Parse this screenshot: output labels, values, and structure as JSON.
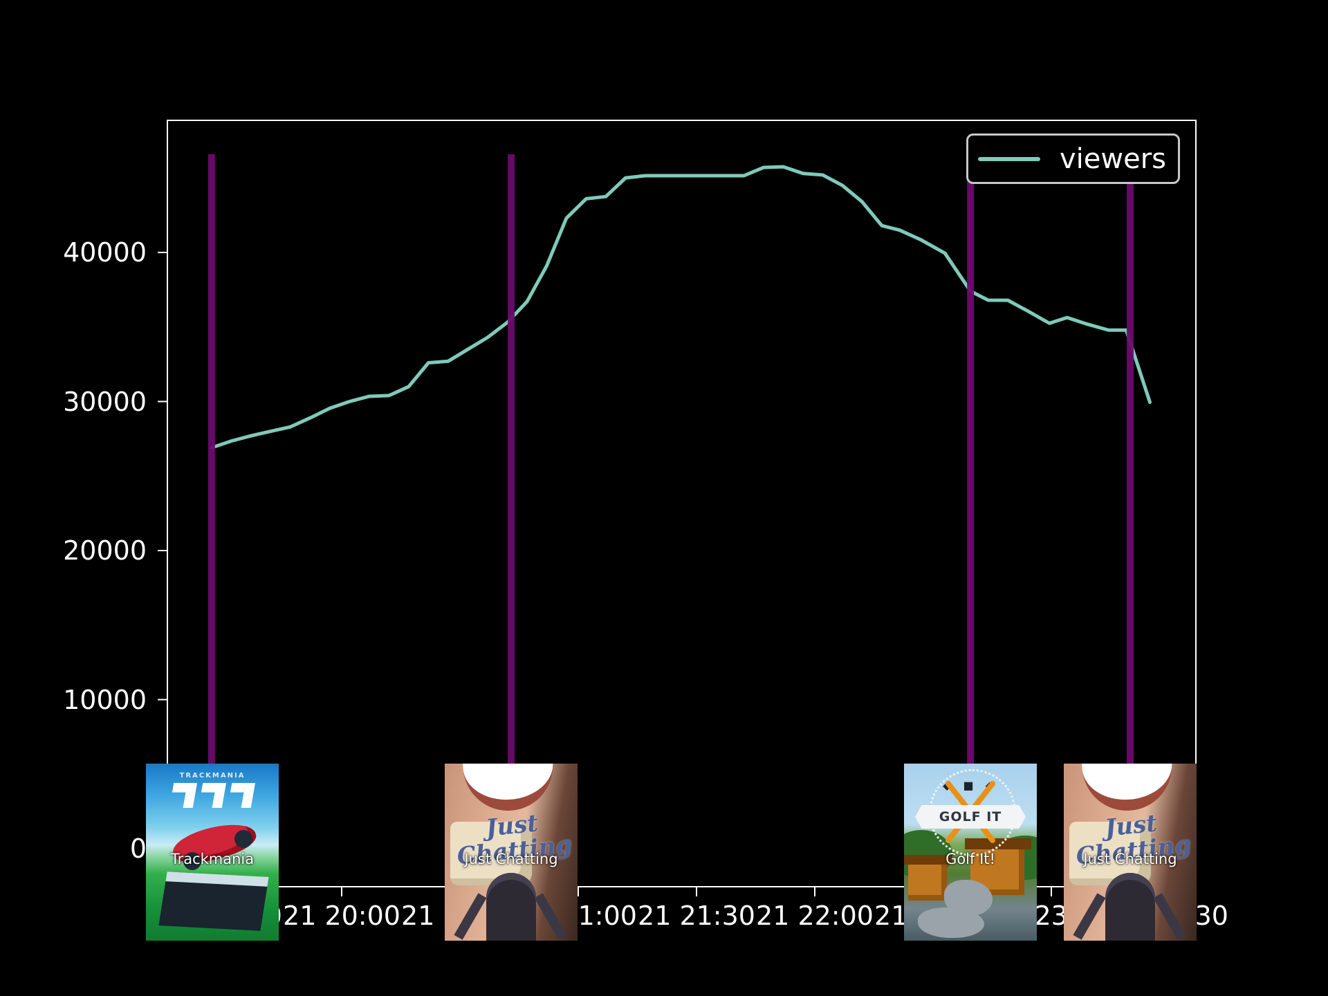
{
  "chart_data": {
    "type": "line",
    "title": "",
    "background": "#000000",
    "grid": false,
    "legend_position": "upper right",
    "legend_entries": [
      "viewers"
    ],
    "xlabel": "",
    "ylabel": "",
    "ylim": [
      -2700,
      49000
    ],
    "y_ticks": [
      {
        "v": 0,
        "label": "0"
      },
      {
        "v": 10000,
        "label": "10000"
      },
      {
        "v": 20000,
        "label": "20000"
      },
      {
        "v": 30000,
        "label": "30000"
      },
      {
        "v": 40000,
        "label": "40000"
      }
    ],
    "x_ticks": [
      {
        "t": -30,
        "label": "21 19:30"
      },
      {
        "t": 0,
        "label": "21 20:00"
      },
      {
        "t": 30,
        "label": "21 20:30"
      },
      {
        "t": 60,
        "label": "21 21:00"
      },
      {
        "t": 90,
        "label": "21 21:30"
      },
      {
        "t": 120,
        "label": "21 22:00"
      },
      {
        "t": 150,
        "label": "21 22:30"
      },
      {
        "t": 180,
        "label": "21 23:00"
      },
      {
        "t": 210,
        "label": "21 23:30"
      }
    ],
    "series": [
      {
        "name": "viewers",
        "color": "#7fcaba",
        "x_minutes_from_2000": [
          -33,
          -28,
          -23,
          -18,
          -13,
          -8,
          -3,
          2,
          7,
          12,
          17,
          22,
          27,
          32,
          37,
          42,
          47,
          52,
          57,
          62,
          67,
          72,
          77,
          102,
          107,
          112,
          117,
          122,
          127,
          132,
          137,
          141.5,
          147,
          153,
          159.5,
          164,
          169,
          174.5,
          179.5,
          184,
          189,
          194.5,
          199,
          205
        ],
        "values": [
          26900,
          27350,
          27700,
          28000,
          28300,
          28900,
          29550,
          30000,
          30350,
          30400,
          31000,
          32600,
          32700,
          33500,
          34300,
          35300,
          36700,
          39100,
          42300,
          43600,
          43750,
          45000,
          45150,
          45150,
          45700,
          45750,
          45300,
          45200,
          44500,
          43400,
          41800,
          41500,
          40840,
          39950,
          37400,
          36800,
          36790,
          36000,
          35250,
          35630,
          35200,
          34790,
          34790,
          29950
        ]
      }
    ],
    "events": [
      {
        "t_min": -33,
        "category": "Trackmania"
      },
      {
        "t_min": 43,
        "category": "Just Chatting"
      },
      {
        "t_min": 159.5,
        "category": "Golf It!"
      },
      {
        "t_min": 200,
        "category": "Just Chatting"
      }
    ],
    "event_line_color": "#6d0a6d",
    "axis_color": "#ffffff"
  },
  "legend": {
    "label": "viewers",
    "line_color": "#7fcaba"
  },
  "thumbnails": [
    {
      "label": "Trackmania",
      "art": {
        "brand": "TRACKMANIA"
      }
    },
    {
      "label": "Just Chatting",
      "art": {
        "script": "Just Chatting"
      }
    },
    {
      "label": "Golf It!",
      "art": {
        "banner": "GOLF IT",
        "dots": "◆ ■ ◆"
      }
    },
    {
      "label": "Just Chatting",
      "art": {
        "script": "Just Chatting"
      }
    }
  ]
}
